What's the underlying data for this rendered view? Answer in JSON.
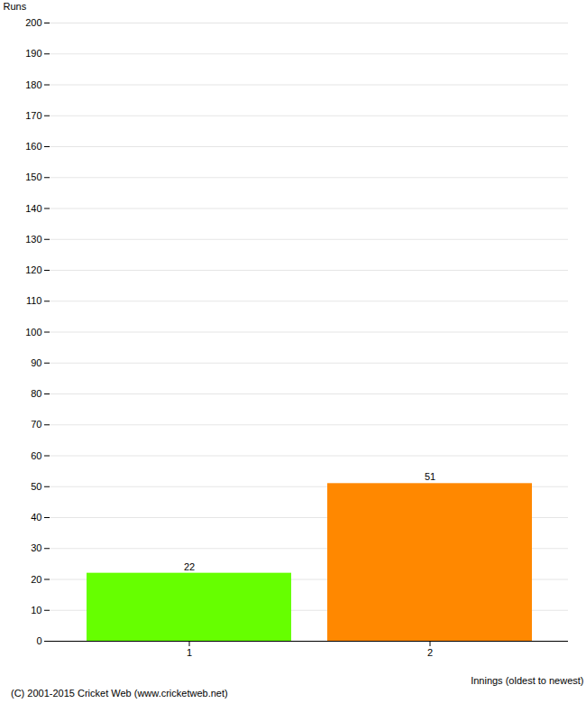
{
  "chart_data": {
    "type": "bar",
    "categories": [
      "1",
      "2"
    ],
    "values": [
      22,
      51
    ],
    "colors": [
      "#66ff00",
      "#ff8800"
    ],
    "xlabel": "Innings (oldest to newest)",
    "ylabel": "Runs",
    "ylim": [
      0,
      200
    ],
    "yticks": [
      0,
      10,
      20,
      30,
      40,
      50,
      60,
      70,
      80,
      90,
      100,
      110,
      120,
      130,
      140,
      150,
      160,
      170,
      180,
      190,
      200
    ],
    "grid": true,
    "data_labels": true,
    "annotations": [
      "(C) 2001-2015 Cricket Web (www.cricketweb.net)"
    ]
  }
}
